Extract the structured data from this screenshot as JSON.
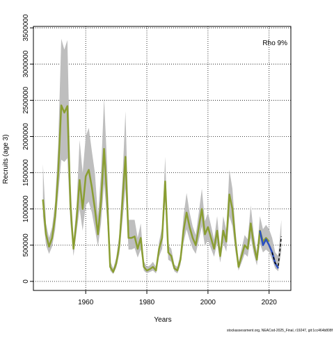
{
  "chart_data": {
    "type": "line",
    "xlabel": "Years",
    "ylabel": "Recruits (age 3)",
    "annotation": "Rho 9%",
    "footer": "stockassessment.org, NEACod-2025_Final, r19247, git:1cc464b808f",
    "x": [
      1946,
      1947,
      1948,
      1949,
      1950,
      1951,
      1952,
      1953,
      1954,
      1955,
      1956,
      1957,
      1958,
      1959,
      1960,
      1961,
      1962,
      1963,
      1964,
      1965,
      1966,
      1967,
      1968,
      1969,
      1970,
      1971,
      1972,
      1973,
      1974,
      1975,
      1976,
      1977,
      1978,
      1979,
      1980,
      1981,
      1982,
      1983,
      1984,
      1985,
      1986,
      1987,
      1988,
      1989,
      1990,
      1991,
      1992,
      1993,
      1994,
      1995,
      1996,
      1997,
      1998,
      1999,
      2000,
      2001,
      2002,
      2003,
      2004,
      2005,
      2006,
      2007,
      2008,
      2009,
      2010,
      2011,
      2012,
      2013,
      2014,
      2015,
      2016,
      2017,
      2018,
      2019,
      2020,
      2021,
      2022,
      2023,
      2024
    ],
    "band": {
      "color": "#bebebe",
      "upper": [
        1620000,
        800000,
        600000,
        750000,
        1100000,
        1900000,
        3350000,
        3200000,
        3330000,
        1400000,
        550000,
        1050000,
        1950000,
        1500000,
        2000000,
        2120000,
        1800000,
        1500000,
        900000,
        1500000,
        2530000,
        1600000,
        280000,
        180000,
        330000,
        650000,
        1400000,
        2350000,
        850000,
        850000,
        850000,
        600000,
        800000,
        280000,
        200000,
        220000,
        270000,
        200000,
        550000,
        750000,
        1720000,
        500000,
        450000,
        230000,
        200000,
        380000,
        900000,
        1220000,
        950000,
        760000,
        640000,
        950000,
        1280000,
        830000,
        950000,
        770000,
        580000,
        900000,
        450000,
        900000,
        710000,
        1540000,
        1280000,
        700000,
        260000,
        450000,
        640000,
        580000,
        1050000,
        650000,
        400000,
        900000,
        720000,
        780000,
        720000,
        600000,
        400000,
        350000,
        850000
      ],
      "lower": [
        900000,
        500000,
        380000,
        480000,
        720000,
        1200000,
        1680000,
        1650000,
        1700000,
        800000,
        350000,
        680000,
        1000000,
        700000,
        1050000,
        1100000,
        950000,
        720000,
        480000,
        800000,
        1350000,
        850000,
        150000,
        100000,
        190000,
        380000,
        820000,
        1280000,
        440000,
        440000,
        460000,
        330000,
        440000,
        150000,
        110000,
        130000,
        150000,
        110000,
        340000,
        450000,
        1100000,
        300000,
        270000,
        140000,
        110000,
        230000,
        530000,
        720000,
        570000,
        450000,
        380000,
        570000,
        760000,
        490000,
        570000,
        450000,
        340000,
        530000,
        260000,
        530000,
        410000,
        900000,
        760000,
        410000,
        150000,
        260000,
        380000,
        340000,
        600000,
        380000,
        220000,
        520000,
        400000,
        440000,
        400000,
        300000,
        180000,
        140000,
        420000
      ]
    },
    "series": [
      {
        "color": "#8a9e32",
        "values": [
          1130000,
          650000,
          480000,
          600000,
          900000,
          1500000,
          2430000,
          2330000,
          2420000,
          1050000,
          450000,
          850000,
          1400000,
          1000000,
          1450000,
          1540000,
          1300000,
          1000000,
          650000,
          1100000,
          1830000,
          1150000,
          200000,
          130000,
          250000,
          500000,
          1100000,
          1720000,
          600000,
          600000,
          620000,
          450000,
          600000,
          200000,
          150000,
          170000,
          200000,
          150000,
          450000,
          600000,
          1380000,
          400000,
          350000,
          180000,
          150000,
          300000,
          700000,
          950000,
          750000,
          600000,
          500000,
          750000,
          1000000,
          650000,
          750000,
          600000,
          450000,
          700000,
          350000,
          700000,
          550000,
          1200000,
          1000000,
          550000,
          200000,
          350000,
          500000,
          450000,
          800000,
          500000,
          300000,
          700000,
          550000,
          600000,
          550000,
          null,
          null,
          null,
          null
        ]
      },
      {
        "color": "#2b4fc0",
        "values": [
          null,
          null,
          null,
          null,
          null,
          null,
          null,
          null,
          null,
          null,
          null,
          null,
          null,
          null,
          null,
          null,
          null,
          null,
          null,
          null,
          null,
          null,
          null,
          null,
          null,
          null,
          null,
          null,
          null,
          null,
          null,
          null,
          null,
          null,
          null,
          null,
          null,
          null,
          null,
          null,
          null,
          null,
          null,
          null,
          null,
          null,
          null,
          null,
          null,
          null,
          null,
          null,
          null,
          null,
          null,
          null,
          null,
          null,
          null,
          null,
          null,
          null,
          null,
          null,
          null,
          null,
          null,
          null,
          null,
          null,
          null,
          700000,
          500000,
          580000,
          500000,
          400000,
          250000,
          180000,
          null
        ]
      },
      {
        "color": "#000000",
        "dashed": true,
        "values": [
          null,
          null,
          null,
          null,
          null,
          null,
          null,
          null,
          null,
          null,
          null,
          null,
          null,
          null,
          null,
          null,
          null,
          null,
          null,
          null,
          null,
          null,
          null,
          null,
          null,
          null,
          null,
          null,
          null,
          null,
          null,
          null,
          null,
          null,
          null,
          null,
          null,
          null,
          null,
          null,
          null,
          null,
          null,
          null,
          null,
          null,
          null,
          null,
          null,
          null,
          null,
          null,
          null,
          null,
          null,
          null,
          null,
          null,
          null,
          null,
          null,
          null,
          null,
          null,
          null,
          null,
          null,
          null,
          null,
          null,
          null,
          null,
          null,
          null,
          null,
          400000,
          250000,
          220000,
          620000
        ]
      }
    ],
    "xlim": [
      1942.88,
      2027.12
    ],
    "ylim": [
      -125000,
      3520000
    ],
    "xticks": [
      1960,
      1980,
      2000,
      2020
    ],
    "yticks": [
      0,
      500000,
      1000000,
      1500000,
      2000000,
      2500000,
      3000000,
      3500000
    ],
    "grid": true
  }
}
